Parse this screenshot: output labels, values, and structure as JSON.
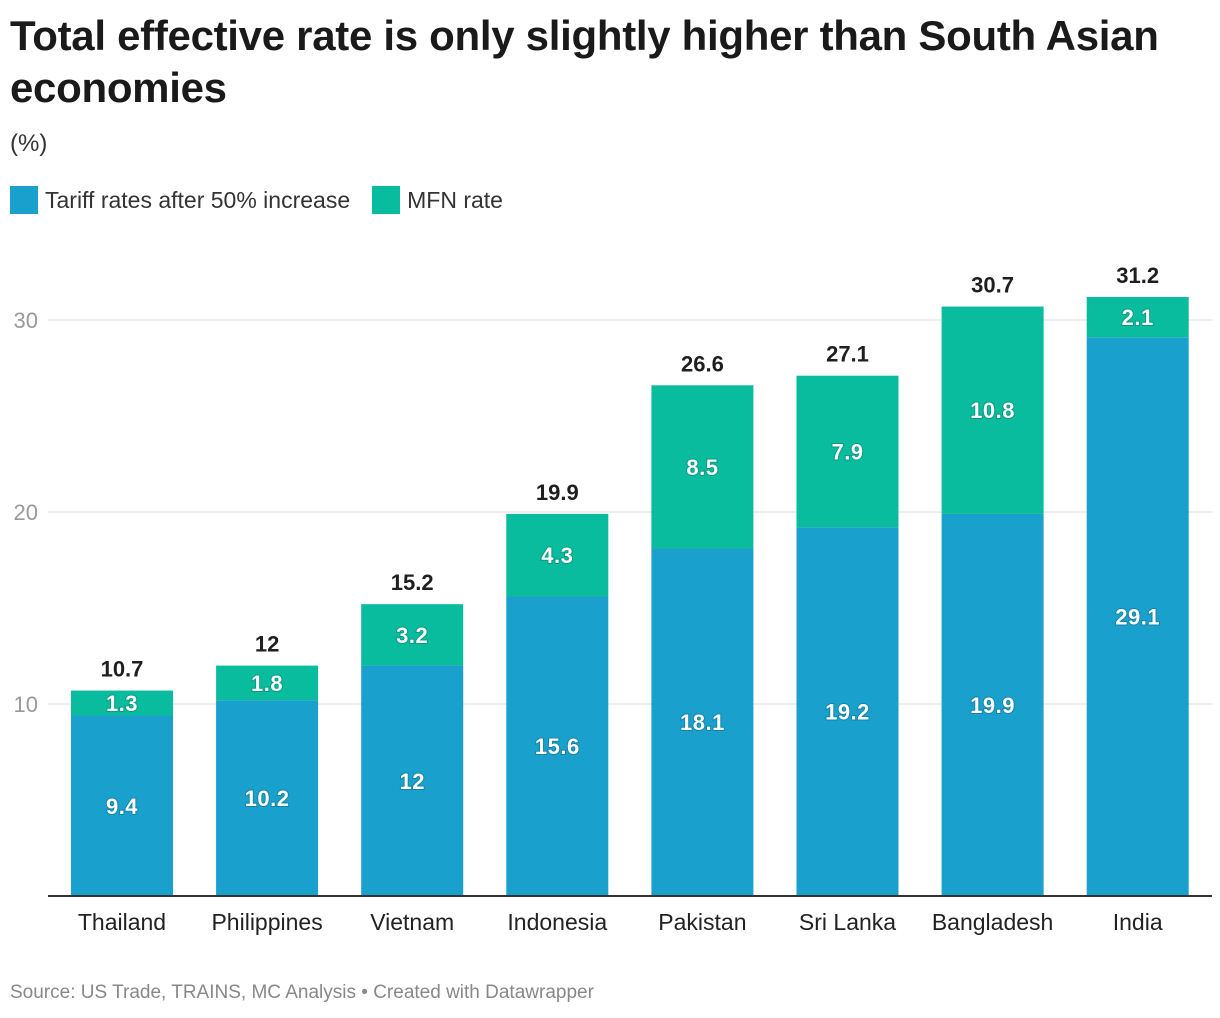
{
  "header": {
    "title": "Total effective rate is only slightly higher than South Asian economies",
    "subtitle": "(%)"
  },
  "legend": {
    "items": [
      {
        "label": "Tariff rates after 50% increase",
        "color": "#1aa0cc"
      },
      {
        "label": "MFN rate",
        "color": "#09bc9e"
      }
    ]
  },
  "chart_data": {
    "type": "bar",
    "stacked": true,
    "categories": [
      "Thailand",
      "Philippines",
      "Vietnam",
      "Indonesia",
      "Pakistan",
      "Sri Lanka",
      "Bangladesh",
      "India"
    ],
    "series": [
      {
        "name": "Tariff rates after 50% increase",
        "values": [
          9.4,
          10.2,
          12,
          15.6,
          18.1,
          19.2,
          19.9,
          29.1
        ],
        "color": "#1aa0cc"
      },
      {
        "name": "MFN rate",
        "values": [
          1.3,
          1.8,
          3.2,
          4.3,
          8.5,
          7.9,
          10.8,
          2.1
        ],
        "color": "#09bc9e"
      }
    ],
    "totals": [
      10.7,
      12,
      15.2,
      19.9,
      26.6,
      27.1,
      30.7,
      31.2
    ],
    "yticks": [
      10,
      20,
      30
    ],
    "ylim": [
      0,
      30.0
    ],
    "grid": true
  },
  "footer": {
    "source": "Source: US Trade, TRAINS, MC Analysis • Created with Datawrapper"
  }
}
